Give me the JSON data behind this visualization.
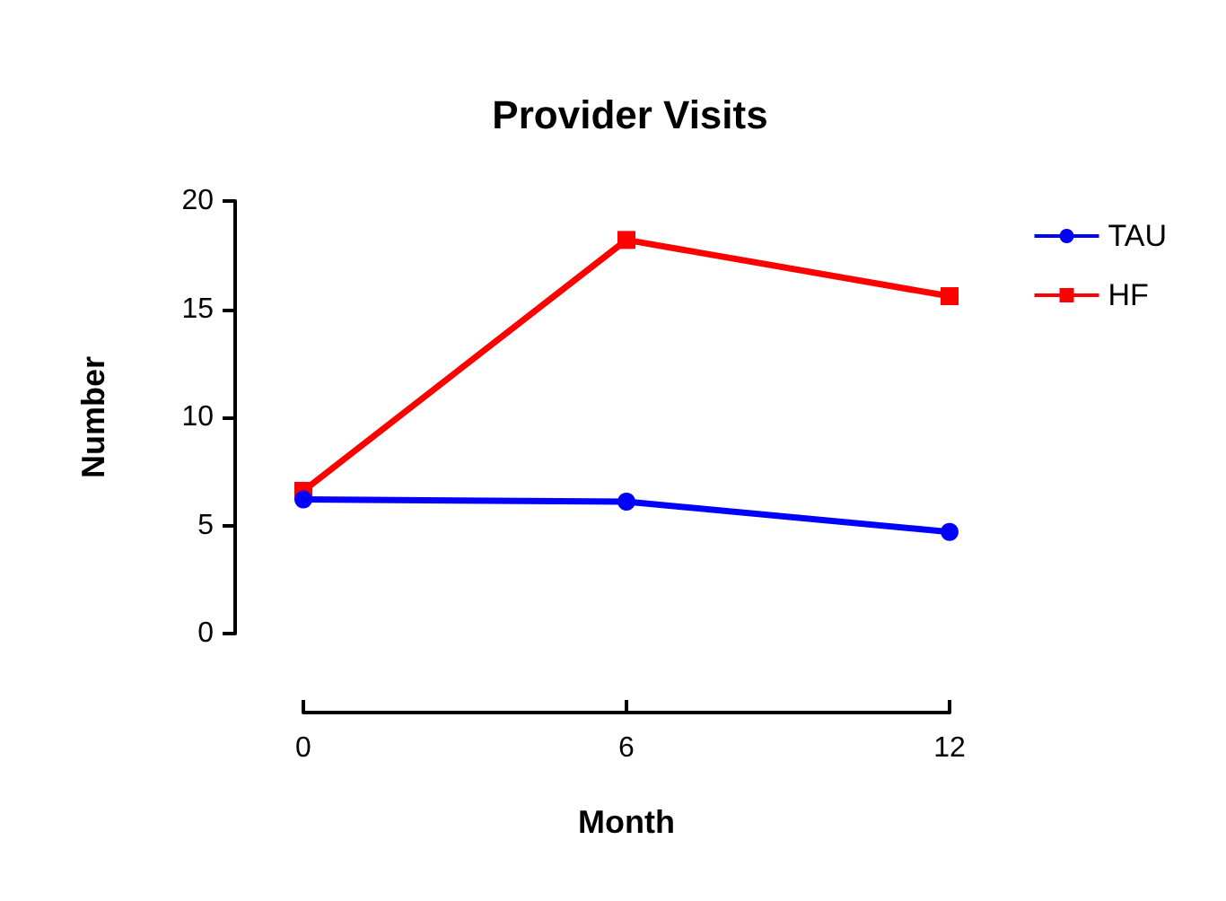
{
  "chart_data": {
    "type": "line",
    "title": "Provider Visits",
    "xlabel": "Month",
    "ylabel": "Number",
    "x": [
      0,
      6,
      12
    ],
    "xlim": [
      0,
      12
    ],
    "xticks": [
      0,
      6,
      12
    ],
    "ylim": [
      0,
      20
    ],
    "yticks": [
      0,
      5,
      10,
      15,
      20
    ],
    "grid": false,
    "legend": "top right",
    "series": [
      {
        "name": "TAU",
        "color": "#0000ff",
        "marker": "circle",
        "values": [
          6.2,
          6.1,
          4.7
        ]
      },
      {
        "name": "HF",
        "color": "#ff0000",
        "marker": "square",
        "values": [
          6.6,
          18.2,
          15.6
        ]
      }
    ]
  }
}
